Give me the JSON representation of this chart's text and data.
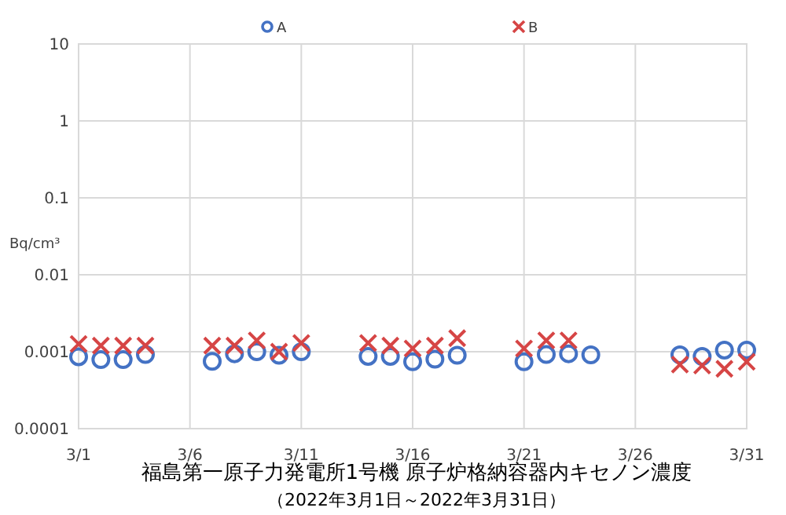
{
  "chart_data": {
    "type": "scatter",
    "title": "福島第一原子力発電所1号機  原子炉格納容器内キセノン濃度",
    "subtitle": "（2022年3月1日～2022年3月31日）",
    "ylabel": "Bq/cm³",
    "log": true,
    "grid": true,
    "legend": "top",
    "xlim": [
      "--03-01",
      "--03-31"
    ],
    "xticks": [
      {
        "value": "--03-01",
        "label": "3/1"
      },
      {
        "value": "--03-06",
        "label": "3/6"
      },
      {
        "value": "--03-11",
        "label": "3/11"
      },
      {
        "value": "--03-16",
        "label": "3/16"
      },
      {
        "value": "--03-21",
        "label": "3/21"
      },
      {
        "value": "--03-26",
        "label": "3/26"
      },
      {
        "value": "--03-31",
        "label": "3/31"
      }
    ],
    "ylim": [
      0.0001,
      10
    ],
    "yticks": [
      0.0001,
      0.001,
      0.01,
      0.1,
      1,
      10
    ],
    "series": [
      {
        "name": "A",
        "color": "#4472c4",
        "marker": "circle",
        "x": [
          "--03-01",
          "--03-02",
          "--03-03",
          "--03-04",
          "--03-07",
          "--03-08",
          "--03-09",
          "--03-10",
          "--03-11",
          "--03-14",
          "--03-15",
          "--03-16",
          "--03-17",
          "--03-18",
          "--03-21",
          "--03-22",
          "--03-23",
          "--03-24",
          "--03-28",
          "--03-29",
          "--03-30",
          "--03-31"
        ],
        "values": [
          0.00086,
          0.00079,
          0.00079,
          0.00092,
          0.00075,
          0.00094,
          0.001,
          0.0009,
          0.001,
          0.00087,
          0.00087,
          0.00074,
          0.0008,
          0.0009,
          0.00074,
          0.00092,
          0.00094,
          0.00091,
          0.00091,
          0.00087,
          0.00105,
          0.00105
        ]
      },
      {
        "name": "B",
        "color": "#d64545",
        "marker": "cross",
        "x": [
          "--03-01",
          "--03-02",
          "--03-03",
          "--03-04",
          "--03-07",
          "--03-08",
          "--03-09",
          "--03-10",
          "--03-11",
          "--03-14",
          "--03-15",
          "--03-16",
          "--03-17",
          "--03-18",
          "--03-21",
          "--03-22",
          "--03-23",
          "--03-28",
          "--03-29",
          "--03-30",
          "--03-31"
        ],
        "values": [
          0.00126,
          0.0012,
          0.0012,
          0.0012,
          0.0012,
          0.0012,
          0.0014,
          0.001,
          0.0013,
          0.0013,
          0.0012,
          0.0011,
          0.0012,
          0.0015,
          0.0011,
          0.0014,
          0.0014,
          0.00068,
          0.00066,
          0.0006,
          0.00074
        ]
      }
    ]
  }
}
